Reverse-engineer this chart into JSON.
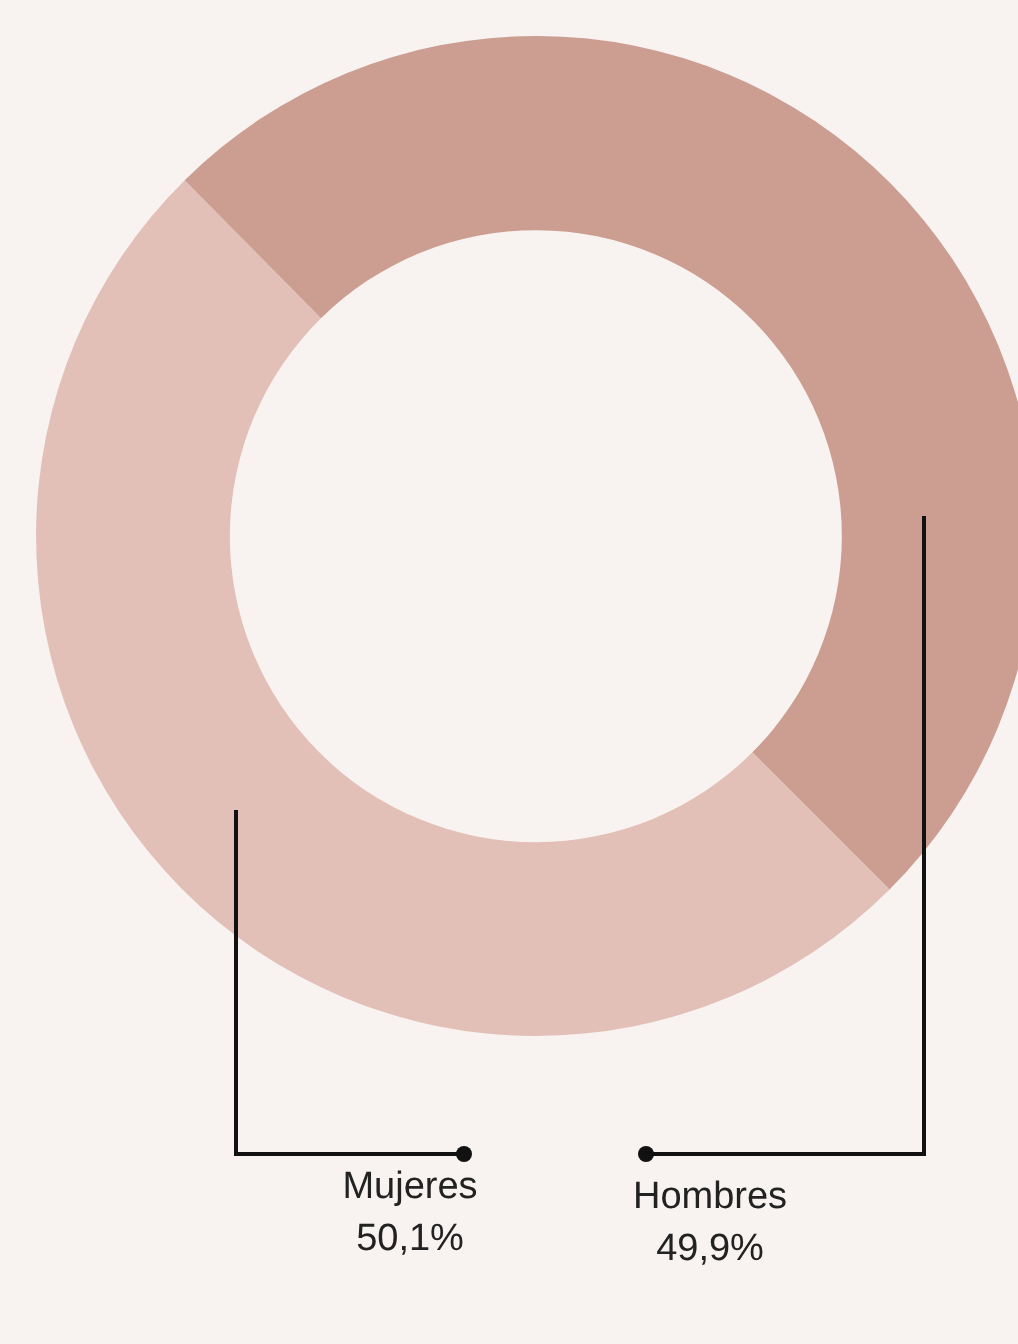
{
  "chart_data": {
    "type": "donut",
    "categories": [
      "Mujeres",
      "Hombres"
    ],
    "values": [
      50.1,
      49.9
    ],
    "colors": [
      "#e2c0b7",
      "#cc9d91"
    ],
    "value_labels": [
      "50,1%",
      "49,9%"
    ]
  }
}
